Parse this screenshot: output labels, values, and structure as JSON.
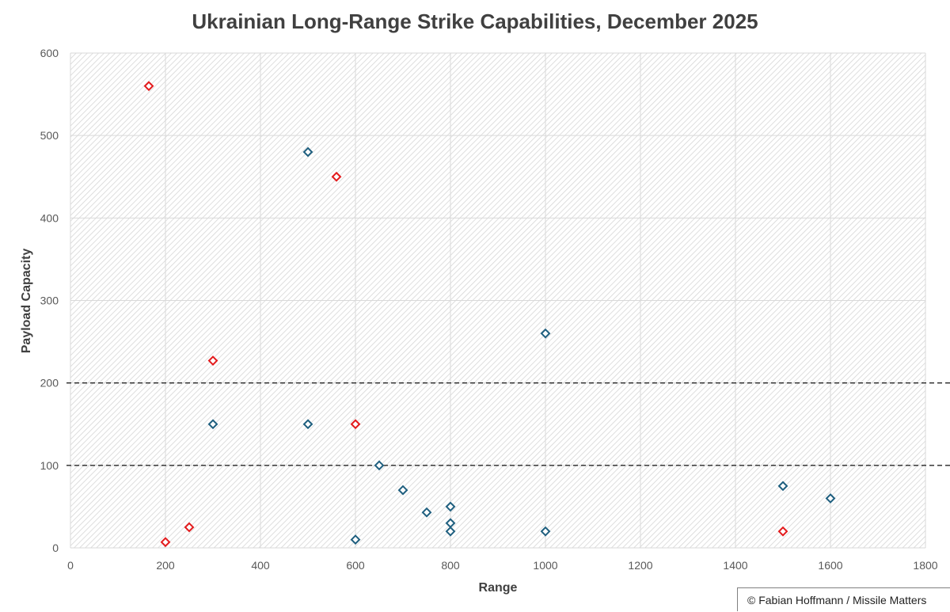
{
  "chart_data": {
    "type": "scatter",
    "title": "Ukrainian Long-Range Strike Capabilities, December 2025",
    "xlabel": "Range",
    "ylabel": "Payload Capacity",
    "xlim": [
      0,
      1800
    ],
    "ylim": [
      0,
      600
    ],
    "xticks": [
      0,
      200,
      400,
      600,
      800,
      1000,
      1200,
      1400,
      1600,
      1800
    ],
    "yticks": [
      0,
      100,
      200,
      300,
      400,
      500,
      600
    ],
    "grid": true,
    "reference_lines_y": [
      100,
      200
    ],
    "series": [
      {
        "color": "#1f5f7f",
        "marker": "diamond-open",
        "points": [
          {
            "x": 500,
            "y": 480
          },
          {
            "x": 1000,
            "y": 260
          },
          {
            "x": 300,
            "y": 150
          },
          {
            "x": 500,
            "y": 150
          },
          {
            "x": 650,
            "y": 100
          },
          {
            "x": 700,
            "y": 70
          },
          {
            "x": 750,
            "y": 43
          },
          {
            "x": 800,
            "y": 50
          },
          {
            "x": 800,
            "y": 30
          },
          {
            "x": 800,
            "y": 20
          },
          {
            "x": 600,
            "y": 10
          },
          {
            "x": 1000,
            "y": 20
          },
          {
            "x": 1500,
            "y": 75
          },
          {
            "x": 1600,
            "y": 60
          }
        ]
      },
      {
        "color": "#e31a1c",
        "marker": "diamond-open",
        "points": [
          {
            "x": 165,
            "y": 560
          },
          {
            "x": 560,
            "y": 450
          },
          {
            "x": 300,
            "y": 227
          },
          {
            "x": 600,
            "y": 150
          },
          {
            "x": 250,
            "y": 25
          },
          {
            "x": 200,
            "y": 7
          },
          {
            "x": 1500,
            "y": 20
          }
        ]
      }
    ]
  },
  "credit": "© Fabian Hoffmann / Missile Matters"
}
